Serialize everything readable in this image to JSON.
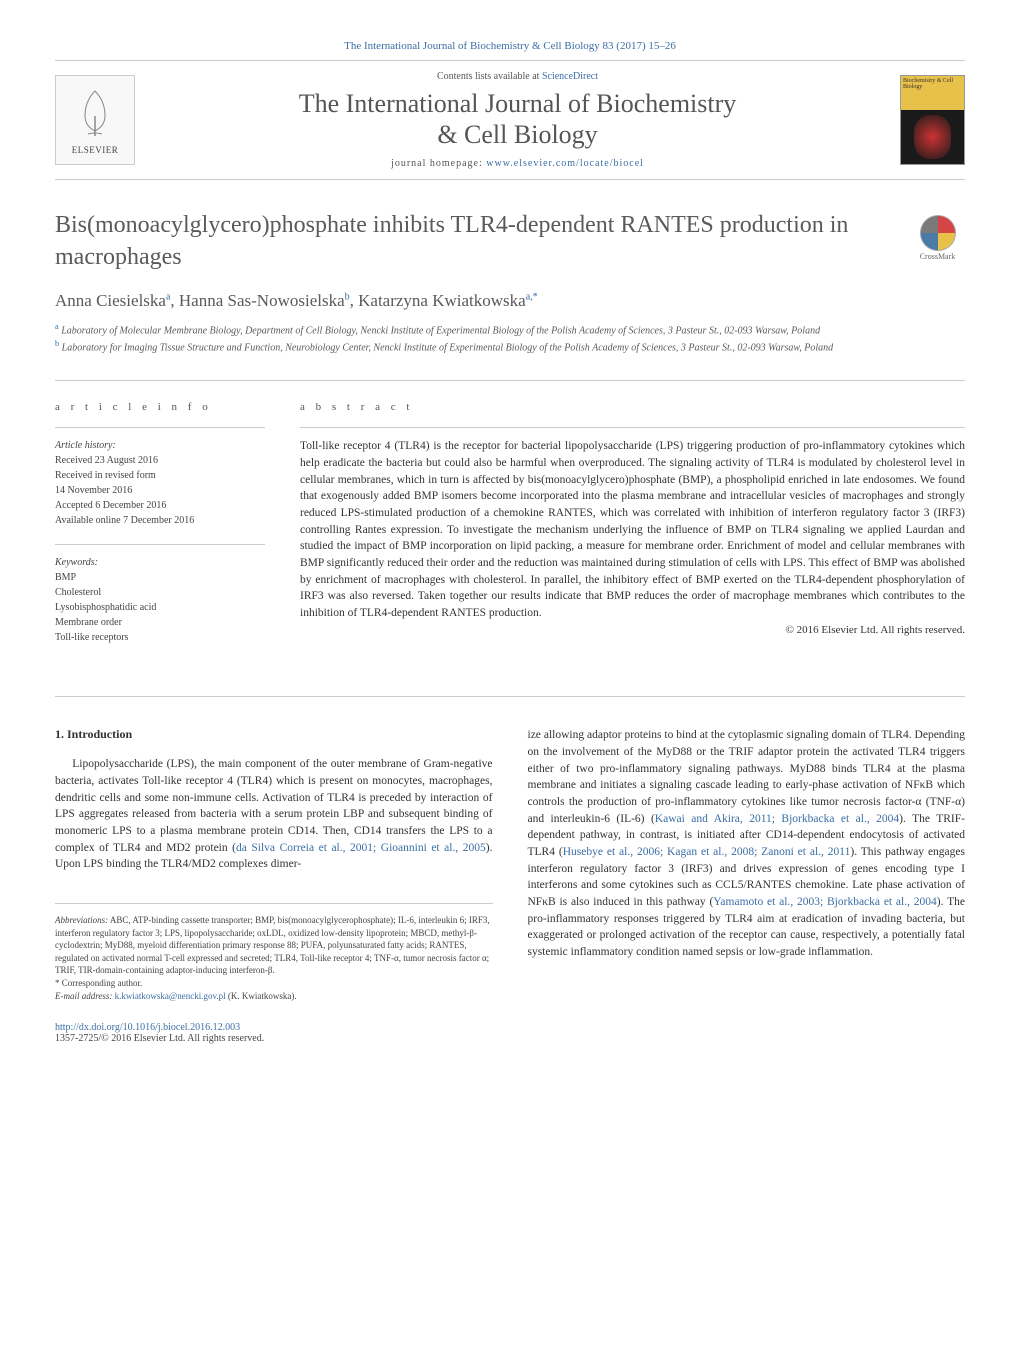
{
  "top_link": "The International Journal of Biochemistry & Cell Biology 83 (2017) 15–26",
  "header": {
    "contents_prefix": "Contents lists available at ",
    "contents_link": "ScienceDirect",
    "journal_name_line1": "The International Journal of Biochemistry",
    "journal_name_line2": "& Cell Biology",
    "homepage_prefix": "journal homepage: ",
    "homepage_url": "www.elsevier.com/locate/biocel",
    "elsevier_label": "ELSEVIER",
    "crossmark_label": "CrossMark"
  },
  "article": {
    "title": "Bis(monoacylglycero)phosphate inhibits TLR4-dependent RANTES production in macrophages",
    "authors_html": "Anna Ciesielska",
    "authors": [
      {
        "name": "Anna Ciesielska",
        "sup": "a"
      },
      {
        "name": "Hanna Sas-Nowosielska",
        "sup": "b"
      },
      {
        "name": "Katarzyna Kwiatkowska",
        "sup": "a,*"
      }
    ],
    "affiliations": [
      {
        "sup": "a",
        "text": "Laboratory of Molecular Membrane Biology, Department of Cell Biology, Nencki Institute of Experimental Biology of the Polish Academy of Sciences, 3 Pasteur St., 02-093 Warsaw, Poland"
      },
      {
        "sup": "b",
        "text": "Laboratory for Imaging Tissue Structure and Function, Neurobiology Center, Nencki Institute of Experimental Biology of the Polish Academy of Sciences, 3 Pasteur St., 02-093 Warsaw, Poland"
      }
    ]
  },
  "info": {
    "section_label": "a r t i c l e   i n f o",
    "history_label": "Article history:",
    "history": [
      "Received 23 August 2016",
      "Received in revised form",
      "14 November 2016",
      "Accepted 6 December 2016",
      "Available online 7 December 2016"
    ],
    "keywords_label": "Keywords:",
    "keywords": [
      "BMP",
      "Cholesterol",
      "Lysobisphosphatidic acid",
      "Membrane order",
      "Toll-like receptors"
    ]
  },
  "abstract": {
    "section_label": "a b s t r a c t",
    "text": "Toll-like receptor 4 (TLR4) is the receptor for bacterial lipopolysaccharide (LPS) triggering production of pro-inflammatory cytokines which help eradicate the bacteria but could also be harmful when overproduced. The signaling activity of TLR4 is modulated by cholesterol level in cellular membranes, which in turn is affected by bis(monoacylglycero)phosphate (BMP), a phospholipid enriched in late endosomes. We found that exogenously added BMP isomers become incorporated into the plasma membrane and intracellular vesicles of macrophages and strongly reduced LPS-stimulated production of a chemokine RANTES, which was correlated with inhibition of interferon regulatory factor 3 (IRF3) controlling Rantes expression. To investigate the mechanism underlying the influence of BMP on TLR4 signaling we applied Laurdan and studied the impact of BMP incorporation on lipid packing, a measure for membrane order. Enrichment of model and cellular membranes with BMP significantly reduced their order and the reduction was maintained during stimulation of cells with LPS. This effect of BMP was abolished by enrichment of macrophages with cholesterol. In parallel, the inhibitory effect of BMP exerted on the TLR4-dependent phosphorylation of IRF3 was also reversed. Taken together our results indicate that BMP reduces the order of macrophage membranes which contributes to the inhibition of TLR4-dependent RANTES production.",
    "copyright": "© 2016 Elsevier Ltd. All rights reserved."
  },
  "body": {
    "intro_heading": "1. Introduction",
    "col1_p1": "Lipopolysaccharide (LPS), the main component of the outer membrane of Gram-negative bacteria, activates Toll-like receptor 4 (TLR4) which is present on monocytes, macrophages, dendritic cells and some non-immune cells. Activation of TLR4 is preceded by interaction of LPS aggregates released from bacteria with a serum protein LBP and subsequent binding of monomeric LPS to a plasma membrane protein CD14. Then, CD14 transfers the LPS to a complex of TLR4 and MD2 protein (",
    "col1_ref1": "da Silva Correia et al., 2001; Gioannini et al., 2005",
    "col1_p1_end": "). Upon LPS binding the TLR4/MD2 complexes dimer-",
    "col2_p1": "ize allowing adaptor proteins to bind at the cytoplasmic signaling domain of TLR4. Depending on the involvement of the MyD88 or the TRIF adaptor protein the activated TLR4 triggers either of two pro-inflammatory signaling pathways. MyD88 binds TLR4 at the plasma membrane and initiates a signaling cascade leading to early-phase activation of NFκB which controls the production of pro-inflammatory cytokines like tumor necrosis factor-α (TNF-α) and interleukin-6 (IL-6) (",
    "col2_ref1": "Kawai and Akira, 2011; Bjorkbacka et al., 2004",
    "col2_p1_mid": "). The TRIF-dependent pathway, in contrast, is initiated after CD14-dependent endocytosis of activated TLR4 (",
    "col2_ref2": "Husebye et al., 2006; Kagan et al., 2008; Zanoni et al., 2011",
    "col2_p1_mid2": "). This pathway engages interferon regulatory factor 3 (IRF3) and drives expression of genes encoding type I interferons and some cytokines such as CCL5/RANTES chemokine. Late phase activation of NFκB is also induced in this pathway (",
    "col2_ref3": "Yamamoto et al., 2003; Bjorkbacka et al., 2004",
    "col2_p1_end": "). The pro-inflammatory responses triggered by TLR4 aim at eradication of invading bacteria, but exaggerated or prolonged activation of the receptor can cause, respectively, a potentially fatal systemic inflammatory condition named sepsis or low-grade inflammation."
  },
  "footer": {
    "abbrev_label": "Abbreviations:",
    "abbrev_text": " ABC, ATP-binding cassette transporter; BMP, bis(monoacylglycerophosphate); IL-6, interleukin 6; IRF3, interferon regulatory factor 3; LPS, lipopolysaccharide; oxLDL, oxidized low-density lipoprotein; MBCD, methyl-β-cyclodextrin; MyD88, myeloid differentiation primary response 88; PUFA, polyunsaturated fatty acids; RANTES, regulated on activated normal T-cell expressed and secreted; TLR4, Toll-like receptor 4; TNF-α, tumor necrosis factor α; TRIF, TIR-domain-containing adaptor-inducing interferon-β.",
    "corresponding": "* Corresponding author.",
    "email_label": "E-mail address: ",
    "email": "k.kwiatkowska@nencki.gov.pl",
    "email_suffix": " (K. Kwiatkowska).",
    "doi": "http://dx.doi.org/10.1016/j.biocel.2016.12.003",
    "issn_copyright": "1357-2725/© 2016 Elsevier Ltd. All rights reserved."
  },
  "colors": {
    "link": "#3b6ea5",
    "text": "#333333",
    "muted": "#5a5a5a",
    "border": "#cccccc"
  }
}
